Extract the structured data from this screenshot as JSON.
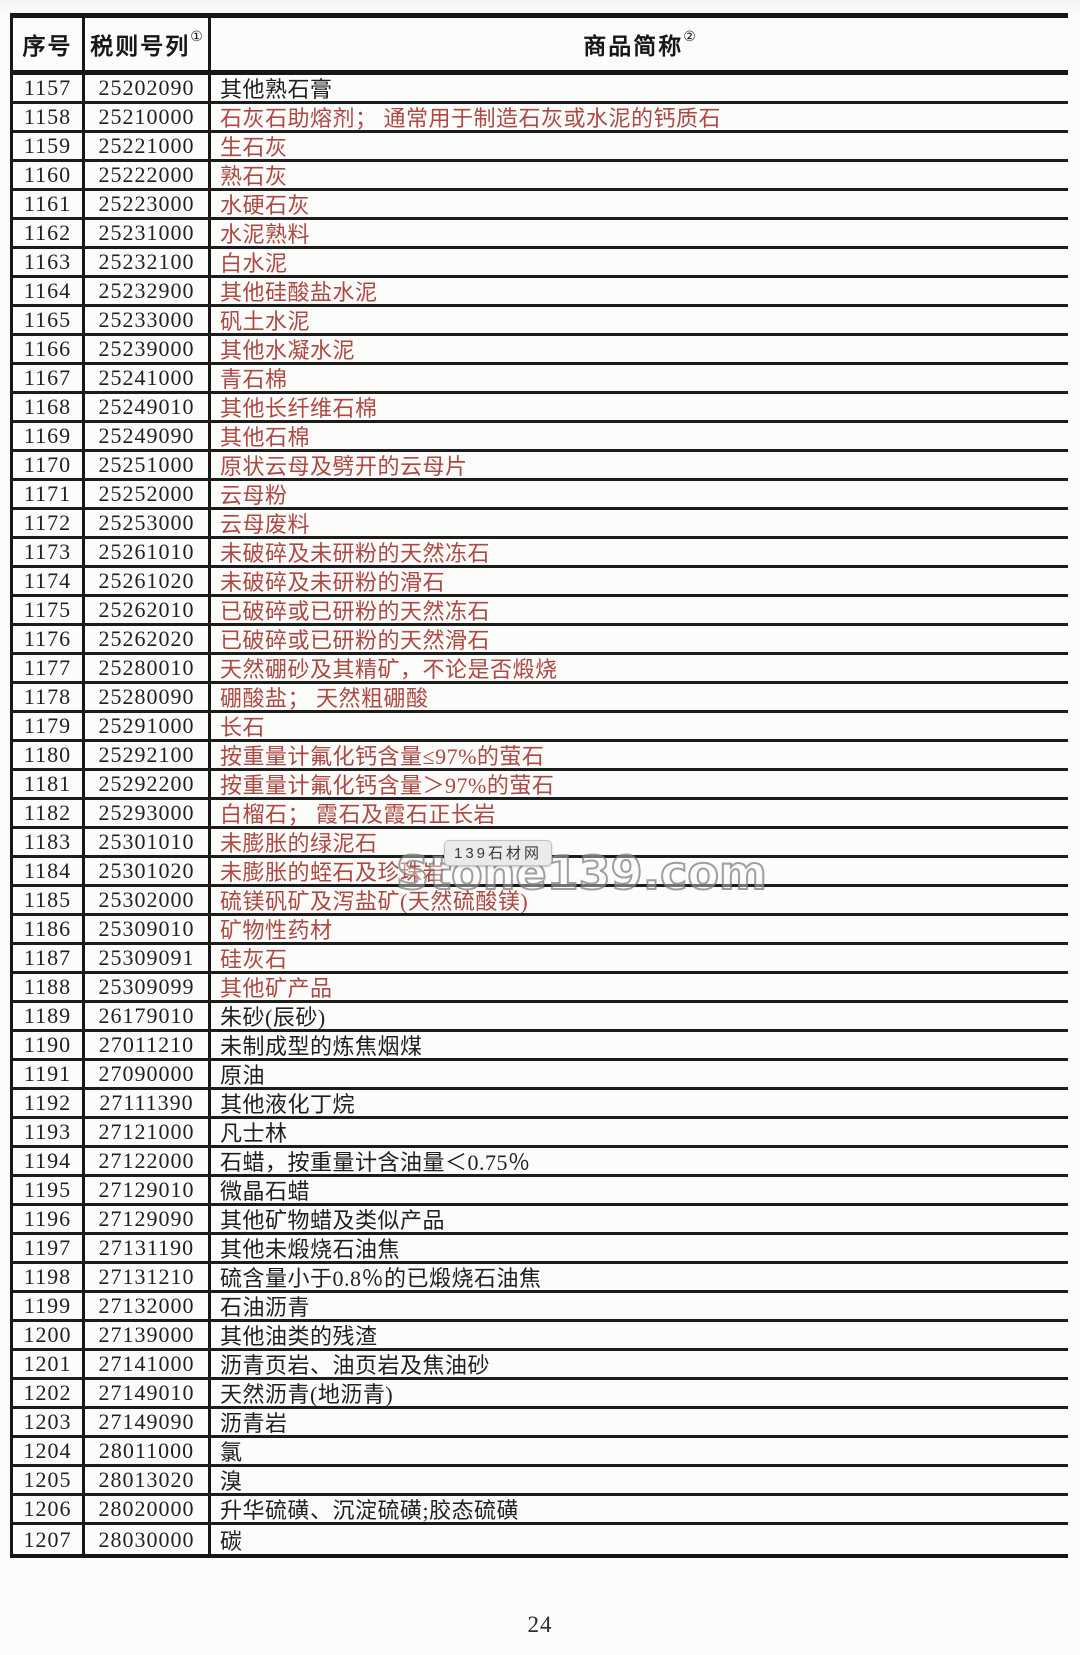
{
  "table": {
    "headers": {
      "seq": "序号",
      "code": "税则号列",
      "code_note": "①",
      "name": "商品简称",
      "name_note": "②"
    },
    "rows": [
      {
        "seq": "1157",
        "code": "25202090",
        "name": "其他熟石膏",
        "style": "black"
      },
      {
        "seq": "1158",
        "code": "25210000",
        "name": "石灰石助熔剂； 通常用于制造石灰或水泥的钙质石",
        "style": "red"
      },
      {
        "seq": "1159",
        "code": "25221000",
        "name": "生石灰",
        "style": "red"
      },
      {
        "seq": "1160",
        "code": "25222000",
        "name": "熟石灰",
        "style": "red"
      },
      {
        "seq": "1161",
        "code": "25223000",
        "name": "水硬石灰",
        "style": "red"
      },
      {
        "seq": "1162",
        "code": "25231000",
        "name": "水泥熟料",
        "style": "red"
      },
      {
        "seq": "1163",
        "code": "25232100",
        "name": "白水泥",
        "style": "red"
      },
      {
        "seq": "1164",
        "code": "25232900",
        "name": "其他硅酸盐水泥",
        "style": "red"
      },
      {
        "seq": "1165",
        "code": "25233000",
        "name": "矾土水泥",
        "style": "red"
      },
      {
        "seq": "1166",
        "code": "25239000",
        "name": "其他水凝水泥",
        "style": "red"
      },
      {
        "seq": "1167",
        "code": "25241000",
        "name": "青石棉",
        "style": "red"
      },
      {
        "seq": "1168",
        "code": "25249010",
        "name": "其他长纤维石棉",
        "style": "red"
      },
      {
        "seq": "1169",
        "code": "25249090",
        "name": "其他石棉",
        "style": "red"
      },
      {
        "seq": "1170",
        "code": "25251000",
        "name": "原状云母及劈开的云母片",
        "style": "red"
      },
      {
        "seq": "1171",
        "code": "25252000",
        "name": "云母粉",
        "style": "red"
      },
      {
        "seq": "1172",
        "code": "25253000",
        "name": "云母废料",
        "style": "red"
      },
      {
        "seq": "1173",
        "code": "25261010",
        "name": "未破碎及未研粉的天然冻石",
        "style": "red"
      },
      {
        "seq": "1174",
        "code": "25261020",
        "name": "未破碎及未研粉的滑石",
        "style": "red"
      },
      {
        "seq": "1175",
        "code": "25262010",
        "name": "已破碎或已研粉的天然冻石",
        "style": "red"
      },
      {
        "seq": "1176",
        "code": "25262020",
        "name": "已破碎或已研粉的天然滑石",
        "style": "red"
      },
      {
        "seq": "1177",
        "code": "25280010",
        "name": "天然硼砂及其精矿，不论是否煅烧",
        "style": "red"
      },
      {
        "seq": "1178",
        "code": "25280090",
        "name": "硼酸盐； 天然粗硼酸",
        "style": "red"
      },
      {
        "seq": "1179",
        "code": "25291000",
        "name": "长石",
        "style": "red"
      },
      {
        "seq": "1180",
        "code": "25292100",
        "name": "按重量计氟化钙含量≤97%的萤石",
        "style": "red"
      },
      {
        "seq": "1181",
        "code": "25292200",
        "name": "按重量计氟化钙含量＞97%的萤石",
        "style": "red"
      },
      {
        "seq": "1182",
        "code": "25293000",
        "name": "白榴石； 霞石及霞石正长岩",
        "style": "red"
      },
      {
        "seq": "1183",
        "code": "25301010",
        "name": "未膨胀的绿泥石",
        "style": "red"
      },
      {
        "seq": "1184",
        "code": "25301020",
        "name": "未膨胀的蛭石及珍珠岩",
        "style": "red"
      },
      {
        "seq": "1185",
        "code": "25302000",
        "name": "硫镁矾矿及泻盐矿(天然硫酸镁)",
        "style": "red"
      },
      {
        "seq": "1186",
        "code": "25309010",
        "name": "矿物性药材",
        "style": "red"
      },
      {
        "seq": "1187",
        "code": "25309091",
        "name": "硅灰石",
        "style": "red"
      },
      {
        "seq": "1188",
        "code": "25309099",
        "name": "其他矿产品",
        "style": "red"
      },
      {
        "seq": "1189",
        "code": "26179010",
        "name": "朱砂(辰砂)",
        "style": "black"
      },
      {
        "seq": "1190",
        "code": "27011210",
        "name": "未制成型的炼焦烟煤",
        "style": "black"
      },
      {
        "seq": "1191",
        "code": "27090000",
        "name": "原油",
        "style": "black"
      },
      {
        "seq": "1192",
        "code": "27111390",
        "name": "其他液化丁烷",
        "style": "black"
      },
      {
        "seq": "1193",
        "code": "27121000",
        "name": "凡士林",
        "style": "black"
      },
      {
        "seq": "1194",
        "code": "27122000",
        "name": "石蜡，按重量计含油量＜0.75％",
        "style": "black"
      },
      {
        "seq": "1195",
        "code": "27129010",
        "name": "微晶石蜡",
        "style": "black"
      },
      {
        "seq": "1196",
        "code": "27129090",
        "name": "其他矿物蜡及类似产品",
        "style": "black"
      },
      {
        "seq": "1197",
        "code": "27131190",
        "name": "其他未煅烧石油焦",
        "style": "black"
      },
      {
        "seq": "1198",
        "code": "27131210",
        "name": "硫含量小于0.8％的已煅烧石油焦",
        "style": "black"
      },
      {
        "seq": "1199",
        "code": "27132000",
        "name": "石油沥青",
        "style": "black"
      },
      {
        "seq": "1200",
        "code": "27139000",
        "name": "其他油类的残渣",
        "style": "black"
      },
      {
        "seq": "1201",
        "code": "27141000",
        "name": "沥青页岩、油页岩及焦油砂",
        "style": "black"
      },
      {
        "seq": "1202",
        "code": "27149010",
        "name": "天然沥青(地沥青)",
        "style": "black"
      },
      {
        "seq": "1203",
        "code": "27149090",
        "name": "沥青岩",
        "style": "black"
      },
      {
        "seq": "1204",
        "code": "28011000",
        "name": "氯",
        "style": "black"
      },
      {
        "seq": "1205",
        "code": "28013020",
        "name": "溴",
        "style": "black"
      },
      {
        "seq": "1206",
        "code": "28020000",
        "name": "升华硫磺、沉淀硫磺;胶态硫磺",
        "style": "black"
      },
      {
        "seq": "1207",
        "code": "28030000",
        "name": "碳",
        "style": "black"
      }
    ]
  },
  "watermark": {
    "badge": "139石材网",
    "site": "Stone139.com"
  },
  "footer": {
    "page_number": "24"
  },
  "colors": {
    "red_text": "#ae4842",
    "black_text": "#1f1f1f",
    "border": "#171717"
  }
}
